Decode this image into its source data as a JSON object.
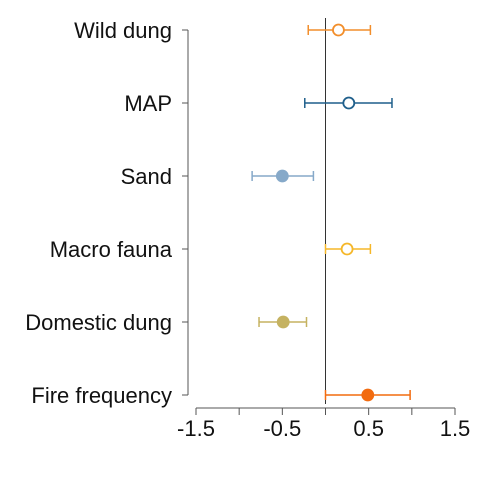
{
  "chart_data": {
    "type": "scatter",
    "subtype": "forest-plot",
    "title": "",
    "xlabel": "",
    "ylabel": "",
    "xlim": [
      -1.55,
      1.55
    ],
    "x_ticks": [
      -1.5,
      -1.0,
      -0.5,
      0.0,
      0.5,
      1.0,
      1.5
    ],
    "x_tick_labels": [
      "-1.5",
      "",
      "-0.5",
      "",
      "0.5",
      "",
      "1.5"
    ],
    "reference_line_x": 0,
    "grid": false,
    "legend": "none",
    "categories": [
      "Wild dung",
      "MAP",
      "Sand",
      "Macro fauna",
      "Domestic dung",
      "Fire frequency"
    ],
    "estimates": [
      {
        "label": "Wild dung",
        "value": 0.15,
        "ci_low": -0.2,
        "ci_high": 0.52,
        "color": "#f28e2b",
        "filled": false
      },
      {
        "label": "MAP",
        "value": 0.27,
        "ci_low": -0.24,
        "ci_high": 0.77,
        "color": "#1f5f8b",
        "filled": false
      },
      {
        "label": "Sand",
        "value": -0.5,
        "ci_low": -0.85,
        "ci_high": -0.14,
        "color": "#86a9c9",
        "filled": true
      },
      {
        "label": "Macro fauna",
        "value": 0.25,
        "ci_low": 0.0,
        "ci_high": 0.52,
        "color": "#f5b729",
        "filled": false
      },
      {
        "label": "Domestic dung",
        "value": -0.49,
        "ci_low": -0.77,
        "ci_high": -0.22,
        "color": "#c5b261",
        "filled": true
      },
      {
        "label": "Fire frequency",
        "value": 0.49,
        "ci_low": 0.0,
        "ci_high": 0.98,
        "color": "#f26b0f",
        "filled": true
      }
    ]
  }
}
